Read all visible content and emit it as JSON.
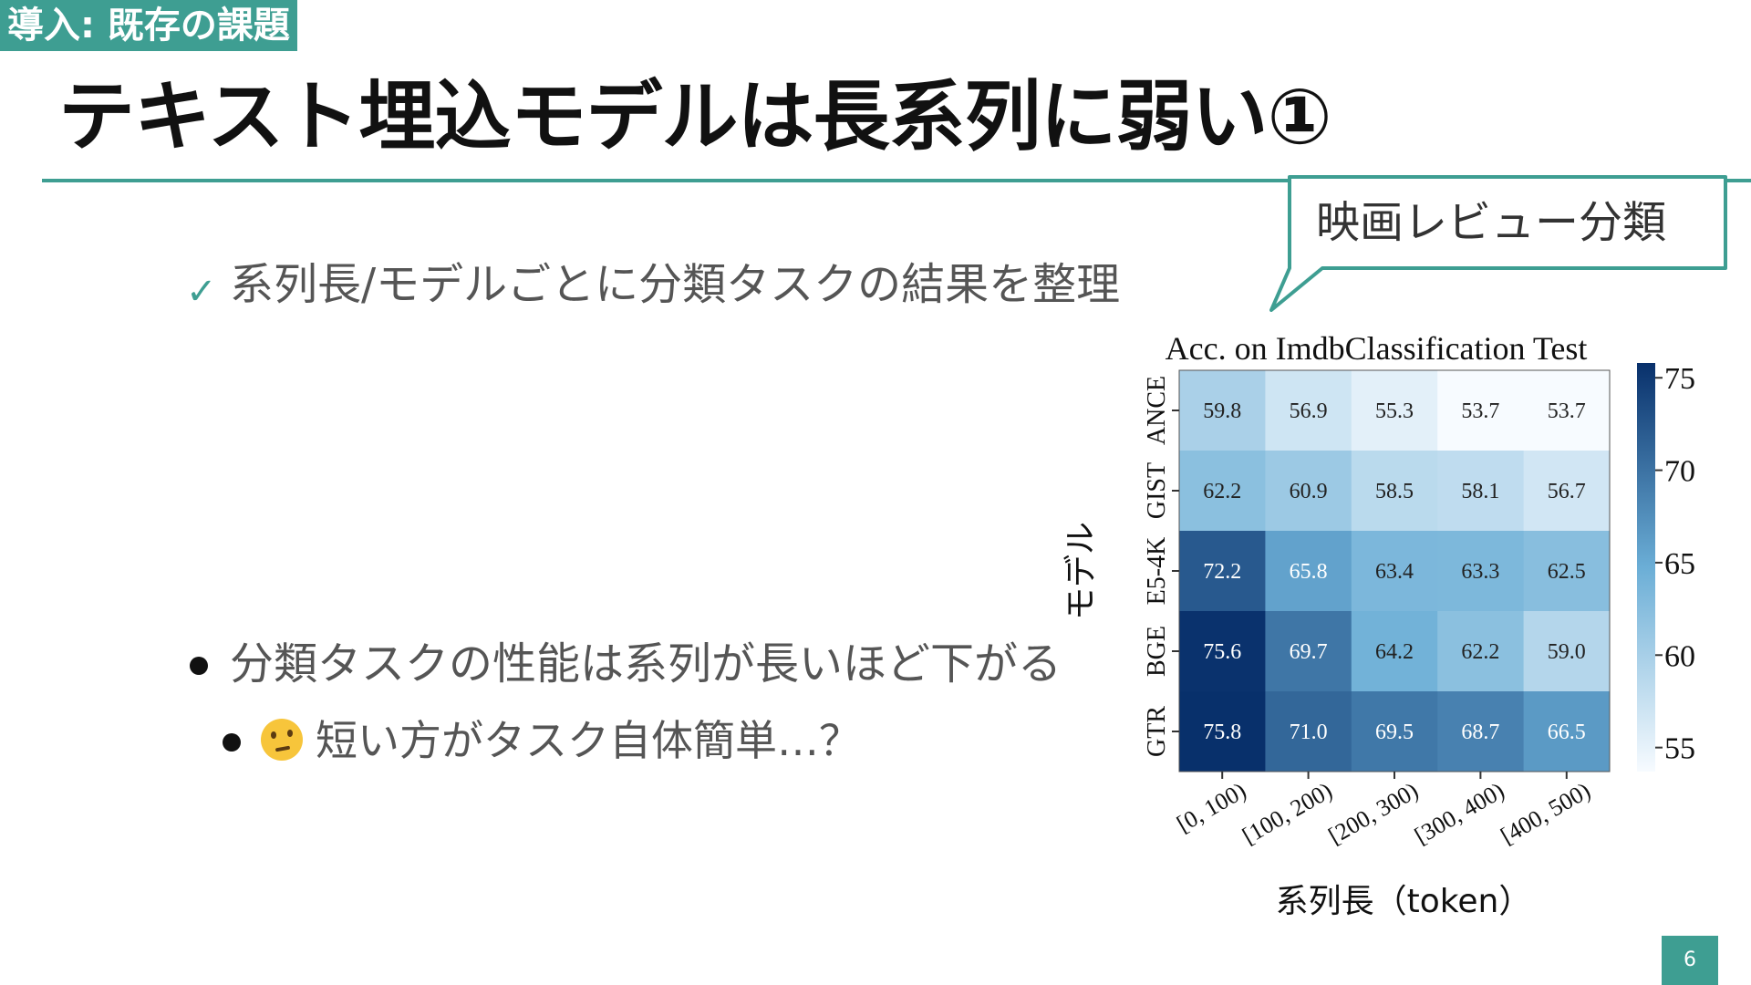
{
  "header": {
    "section_tag": "導入: 既存の課題",
    "title": "テキスト埋込モデルは長系列に弱い①"
  },
  "callout": {
    "label": "映画レビュー分類"
  },
  "bullets": [
    {
      "marker": "✓",
      "text": "系列長/モデルごとに分類タスクの結果を整理"
    },
    {
      "marker": "●",
      "text": "分類タスクの性能は系列が長いほど下がる"
    },
    {
      "marker": "●",
      "emoji": "thinking-face-icon",
      "text": "短い方がタスク自体簡単…？"
    }
  ],
  "page_number": "6",
  "chart_data": {
    "type": "heatmap",
    "title": "Acc. on ImdbClassification Test",
    "xlabel": "系列長（token）",
    "ylabel": "モデル",
    "x": [
      "[0, 100)",
      "[100, 200)",
      "[200, 300)",
      "[300, 400)",
      "[400, 500)"
    ],
    "y": [
      "ANCE",
      "GIST",
      "E5-4K",
      "BGE",
      "GTR"
    ],
    "values": [
      [
        59.8,
        56.9,
        55.3,
        53.7,
        53.7
      ],
      [
        62.2,
        60.9,
        58.5,
        58.1,
        56.7
      ],
      [
        72.2,
        65.8,
        63.4,
        63.3,
        62.5
      ],
      [
        75.6,
        69.7,
        64.2,
        62.2,
        59.0
      ],
      [
        75.8,
        71.0,
        69.5,
        68.7,
        66.5
      ]
    ],
    "colorbar": {
      "ticks": [
        55,
        60,
        65,
        70,
        75
      ],
      "range": [
        53.7,
        75.8
      ]
    },
    "colormap": "Blues",
    "colors": {
      "low": "#f7fbff",
      "mid": "#6baed6",
      "high": "#08306b"
    }
  }
}
